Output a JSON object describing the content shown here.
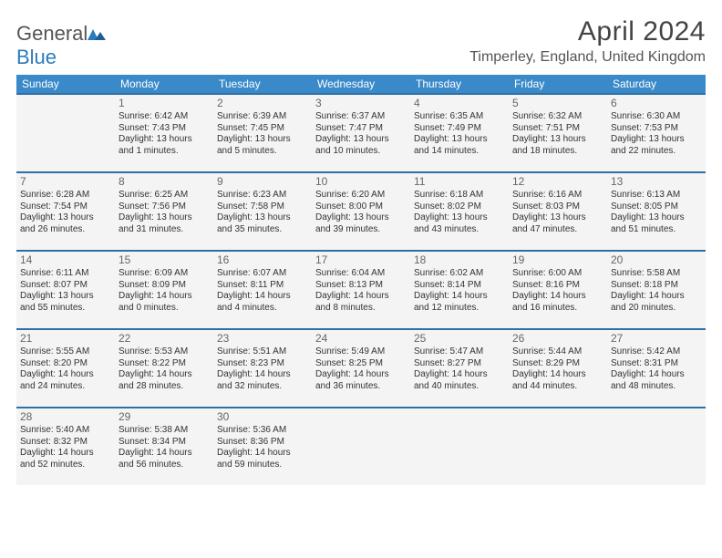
{
  "logo": {
    "word1": "General",
    "word2": "Blue"
  },
  "title": "April 2024",
  "location": "Timperley, England, United Kingdom",
  "colors": {
    "header_bg": "#3a8ac9",
    "header_text": "#ffffff",
    "cell_bg": "#f4f4f4",
    "cell_border": "#2f6fa6",
    "text": "#333333",
    "title_text": "#444444",
    "logo_gray": "#555555",
    "logo_blue": "#2b7bbf"
  },
  "weekdays": [
    "Sunday",
    "Monday",
    "Tuesday",
    "Wednesday",
    "Thursday",
    "Friday",
    "Saturday"
  ],
  "start_offset": 1,
  "days": [
    {
      "n": "1",
      "sr": "6:42 AM",
      "ss": "7:43 PM",
      "dh": "13",
      "dm": "1"
    },
    {
      "n": "2",
      "sr": "6:39 AM",
      "ss": "7:45 PM",
      "dh": "13",
      "dm": "5"
    },
    {
      "n": "3",
      "sr": "6:37 AM",
      "ss": "7:47 PM",
      "dh": "13",
      "dm": "10"
    },
    {
      "n": "4",
      "sr": "6:35 AM",
      "ss": "7:49 PM",
      "dh": "13",
      "dm": "14"
    },
    {
      "n": "5",
      "sr": "6:32 AM",
      "ss": "7:51 PM",
      "dh": "13",
      "dm": "18"
    },
    {
      "n": "6",
      "sr": "6:30 AM",
      "ss": "7:53 PM",
      "dh": "13",
      "dm": "22"
    },
    {
      "n": "7",
      "sr": "6:28 AM",
      "ss": "7:54 PM",
      "dh": "13",
      "dm": "26"
    },
    {
      "n": "8",
      "sr": "6:25 AM",
      "ss": "7:56 PM",
      "dh": "13",
      "dm": "31"
    },
    {
      "n": "9",
      "sr": "6:23 AM",
      "ss": "7:58 PM",
      "dh": "13",
      "dm": "35"
    },
    {
      "n": "10",
      "sr": "6:20 AM",
      "ss": "8:00 PM",
      "dh": "13",
      "dm": "39"
    },
    {
      "n": "11",
      "sr": "6:18 AM",
      "ss": "8:02 PM",
      "dh": "13",
      "dm": "43"
    },
    {
      "n": "12",
      "sr": "6:16 AM",
      "ss": "8:03 PM",
      "dh": "13",
      "dm": "47"
    },
    {
      "n": "13",
      "sr": "6:13 AM",
      "ss": "8:05 PM",
      "dh": "13",
      "dm": "51"
    },
    {
      "n": "14",
      "sr": "6:11 AM",
      "ss": "8:07 PM",
      "dh": "13",
      "dm": "55"
    },
    {
      "n": "15",
      "sr": "6:09 AM",
      "ss": "8:09 PM",
      "dh": "14",
      "dm": "0"
    },
    {
      "n": "16",
      "sr": "6:07 AM",
      "ss": "8:11 PM",
      "dh": "14",
      "dm": "4"
    },
    {
      "n": "17",
      "sr": "6:04 AM",
      "ss": "8:13 PM",
      "dh": "14",
      "dm": "8"
    },
    {
      "n": "18",
      "sr": "6:02 AM",
      "ss": "8:14 PM",
      "dh": "14",
      "dm": "12"
    },
    {
      "n": "19",
      "sr": "6:00 AM",
      "ss": "8:16 PM",
      "dh": "14",
      "dm": "16"
    },
    {
      "n": "20",
      "sr": "5:58 AM",
      "ss": "8:18 PM",
      "dh": "14",
      "dm": "20"
    },
    {
      "n": "21",
      "sr": "5:55 AM",
      "ss": "8:20 PM",
      "dh": "14",
      "dm": "24"
    },
    {
      "n": "22",
      "sr": "5:53 AM",
      "ss": "8:22 PM",
      "dh": "14",
      "dm": "28"
    },
    {
      "n": "23",
      "sr": "5:51 AM",
      "ss": "8:23 PM",
      "dh": "14",
      "dm": "32"
    },
    {
      "n": "24",
      "sr": "5:49 AM",
      "ss": "8:25 PM",
      "dh": "14",
      "dm": "36"
    },
    {
      "n": "25",
      "sr": "5:47 AM",
      "ss": "8:27 PM",
      "dh": "14",
      "dm": "40"
    },
    {
      "n": "26",
      "sr": "5:44 AM",
      "ss": "8:29 PM",
      "dh": "14",
      "dm": "44"
    },
    {
      "n": "27",
      "sr": "5:42 AM",
      "ss": "8:31 PM",
      "dh": "14",
      "dm": "48"
    },
    {
      "n": "28",
      "sr": "5:40 AM",
      "ss": "8:32 PM",
      "dh": "14",
      "dm": "52"
    },
    {
      "n": "29",
      "sr": "5:38 AM",
      "ss": "8:34 PM",
      "dh": "14",
      "dm": "56"
    },
    {
      "n": "30",
      "sr": "5:36 AM",
      "ss": "8:36 PM",
      "dh": "14",
      "dm": "59"
    }
  ],
  "labels": {
    "sunrise": "Sunrise:",
    "sunset": "Sunset:",
    "daylight": "Daylight:",
    "hours": "hours",
    "and": "and",
    "minutes": "minutes."
  }
}
